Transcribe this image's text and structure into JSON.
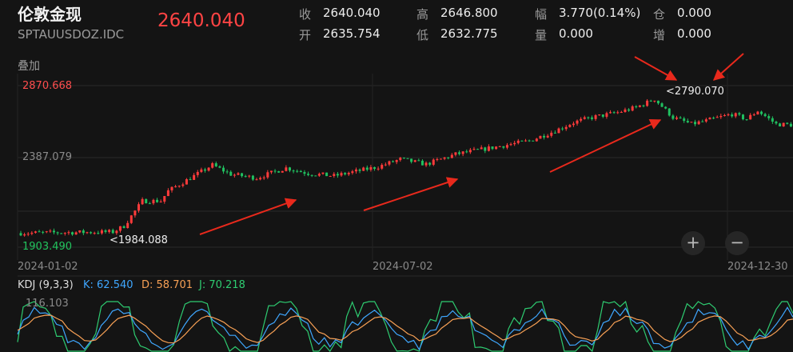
{
  "header": {
    "name": "伦敦金现",
    "code": "SPTAUUSDOZ.IDC",
    "price": "2640.040",
    "stats": [
      {
        "label": "收",
        "value": "2640.040"
      },
      {
        "label": "高",
        "value": "2646.800"
      },
      {
        "label": "幅",
        "value": "3.770(0.14%)"
      },
      {
        "label": "仓",
        "value": "0.000"
      },
      {
        "label": "开",
        "value": "2635.754"
      },
      {
        "label": "低",
        "value": "2632.775"
      },
      {
        "label": "量",
        "value": "0.000"
      },
      {
        "label": "增",
        "value": "0.000"
      }
    ]
  },
  "overlay_label": "叠加",
  "colors": {
    "up": "#ff3b3b",
    "down": "#20c060",
    "annot": "#e8291c",
    "k": "#3fa7ff",
    "d": "#f7a055",
    "j": "#2ecc71"
  },
  "chart_data": {
    "type": "candlestick",
    "y_axis_labels": {
      "max": "2870.668",
      "mid": "2387.079",
      "min": "1903.490"
    },
    "ylim": [
      1903.49,
      2870.668
    ],
    "x_axis_labels": [
      "2024-01-02",
      "2024-07-02",
      "2024-12-30"
    ],
    "annotations": {
      "low_marker": "1984.088",
      "high_marker": "2790.070"
    },
    "trend_anchors": [
      [
        0,
        1988
      ],
      [
        25,
        1995
      ],
      [
        28,
        2030
      ],
      [
        33,
        2180
      ],
      [
        38,
        2180
      ],
      [
        40,
        2240
      ],
      [
        47,
        2330
      ],
      [
        52,
        2395
      ],
      [
        57,
        2340
      ],
      [
        64,
        2318
      ],
      [
        72,
        2378
      ],
      [
        78,
        2345
      ],
      [
        85,
        2330
      ],
      [
        97,
        2385
      ],
      [
        103,
        2430
      ],
      [
        110,
        2400
      ],
      [
        118,
        2460
      ],
      [
        128,
        2500
      ],
      [
        138,
        2540
      ],
      [
        145,
        2600
      ],
      [
        150,
        2650
      ],
      [
        155,
        2680
      ],
      [
        162,
        2710
      ],
      [
        167,
        2740
      ],
      [
        172,
        2790
      ],
      [
        177,
        2680
      ],
      [
        182,
        2640
      ],
      [
        186,
        2660
      ],
      [
        193,
        2700
      ],
      [
        197,
        2670
      ],
      [
        200,
        2720
      ],
      [
        205,
        2640
      ],
      [
        210,
        2635
      ]
    ],
    "candle_count": 211
  },
  "kdj": {
    "label": "KDJ (9,3,3)",
    "k": "K: 62.540",
    "d": "D: 58.701",
    "j": "J: 70.218",
    "axis_max": "116.103"
  },
  "controls": {
    "zoom_in": "+",
    "zoom_out": "−"
  }
}
